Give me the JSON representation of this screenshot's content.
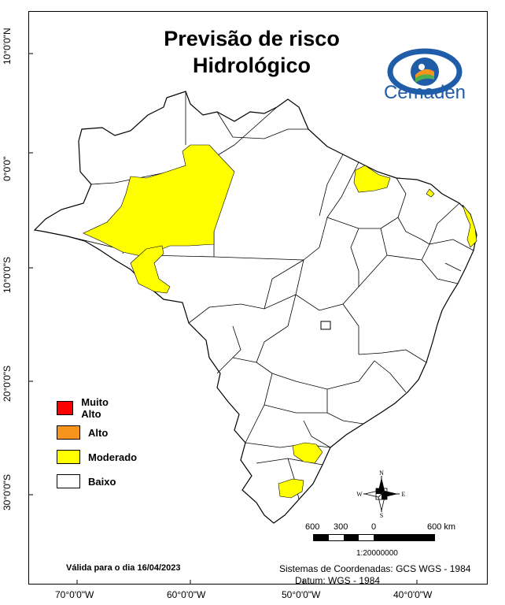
{
  "title_line1": "Previsão de risco",
  "title_line2": "Hidrológico",
  "logo_text": "Cemaden",
  "lat_labels": [
    "10°0'0\"N",
    "0°0'0\"",
    "10°0'0\"S",
    "20°0'0\"S",
    "30°0'0\"S"
  ],
  "lon_labels": [
    "70°0'0\"W",
    "60°0'0\"W",
    "50°0'0\"W",
    "40°0'0\"W"
  ],
  "legend": {
    "items": [
      {
        "label": "Muito Alto",
        "color": "#ff0000"
      },
      {
        "label": "Alto",
        "color": "#f7941d"
      },
      {
        "label": "Moderado",
        "color": "#ffff00"
      },
      {
        "label": "Baixo",
        "color": "#ffffff"
      }
    ]
  },
  "validity_text": "Válida para o dia 16/04/2023",
  "coord_system": "Sistemas de Coordenadas: GCS WGS - 1984",
  "datum": "Datum: WGS - 1984",
  "scale": {
    "labels": [
      "600",
      "300",
      "0",
      "600 km"
    ],
    "ratio": "1:20000000"
  },
  "compass": {
    "n": "N",
    "s": "S",
    "e": "E",
    "w": "W"
  },
  "colors": {
    "moderado": "#ffff00",
    "baixo": "#ffffff",
    "boundary": "#000000",
    "logo_blue": "#1f5da8",
    "logo_orange": "#f7941d",
    "logo_green": "#4caf50"
  }
}
